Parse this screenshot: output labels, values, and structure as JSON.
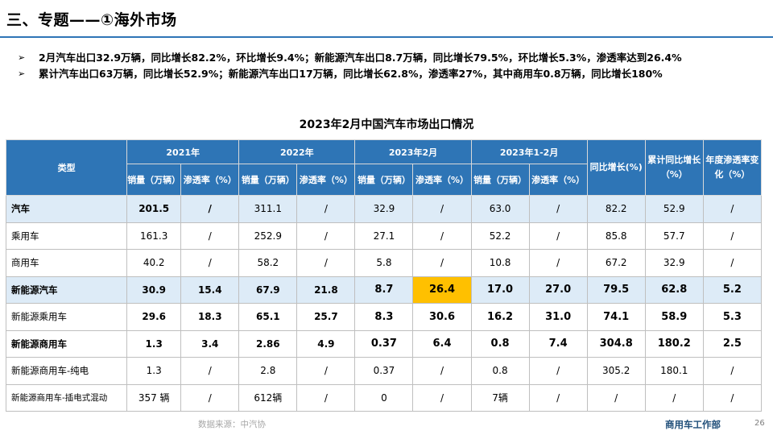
{
  "header": {
    "title": "三、专题——①海外市场"
  },
  "bullets": [
    "2月汽车出口32.9万辆，同比增长82.2%，环比增长9.4%；新能源汽车出口8.7万辆，同比增长79.5%，环比增长5.3%，渗透率达到26.4%",
    "累计汽车出口63万辆，同比增长52.9%；新能源汽车出口17万辆，同比增长62.8%，渗透率27%，其中商用车0.8万辆，同比增长180%"
  ],
  "table": {
    "title": "2023年2月中国汽车市场出口情况",
    "header": {
      "type": "类型",
      "groups": [
        "2021年",
        "2022年",
        "2023年2月",
        "2023年1-2月"
      ],
      "sub": [
        "销量（万辆）",
        "渗透率（%）"
      ],
      "yoy": "同比增长(%)",
      "cum_yoy": "累计同比增长（%）",
      "pen_change": "年度渗透率变化（%）"
    },
    "rows": [
      {
        "name": "汽车",
        "cells": [
          "201.5",
          "/",
          "311.1",
          "/",
          "32.9",
          "/",
          "63.0",
          "/",
          "82.2",
          "52.9",
          "/"
        ]
      },
      {
        "name": "乘用车",
        "cells": [
          "161.3",
          "/",
          "252.9",
          "/",
          "27.1",
          "/",
          "52.2",
          "/",
          "85.8",
          "57.7",
          "/"
        ]
      },
      {
        "name": "商用车",
        "cells": [
          "40.2",
          "/",
          "58.2",
          "/",
          "5.8",
          "/",
          "10.8",
          "/",
          "67.2",
          "32.9",
          "/"
        ]
      },
      {
        "name": "新能源汽车",
        "cells": [
          "30.9",
          "15.4",
          "67.9",
          "21.8",
          "8.7",
          "26.4",
          "17.0",
          "27.0",
          "79.5",
          "62.8",
          "5.2"
        ]
      },
      {
        "name": "新能源乘用车",
        "cells": [
          "29.6",
          "18.3",
          "65.1",
          "25.7",
          "8.3",
          "30.6",
          "16.2",
          "31.0",
          "74.1",
          "58.9",
          "5.3"
        ]
      },
      {
        "name": "新能源商用车",
        "cells": [
          "1.3",
          "3.4",
          "2.86",
          "4.9",
          "0.37",
          "6.4",
          "0.8",
          "7.4",
          "304.8",
          "180.2",
          "2.5"
        ]
      },
      {
        "name": "新能源商用车-纯电",
        "cells": [
          "1.3",
          "/",
          "2.8",
          "/",
          "0.37",
          "/",
          "0.8",
          "/",
          "305.2",
          "180.1",
          "/"
        ]
      },
      {
        "name": "新能源商用车-插电式混动",
        "cells": [
          "357 辆",
          "/",
          "612辆",
          "/",
          "0",
          "/",
          "7辆",
          "/",
          "/",
          "/",
          "/"
        ]
      }
    ],
    "highlight_color": "#ffc000"
  },
  "footer": {
    "source": "数据来源：中汽协",
    "department": "商用车工作部",
    "page": "26"
  },
  "colors": {
    "accent": "#2e75b6",
    "row_highlight": "#ddebf7"
  }
}
